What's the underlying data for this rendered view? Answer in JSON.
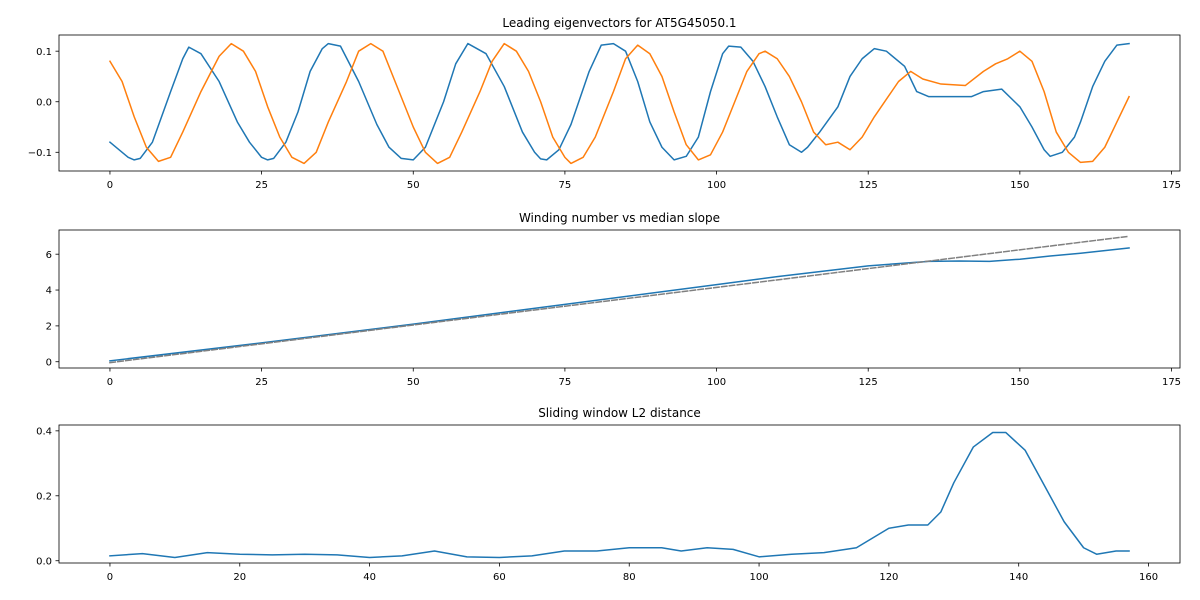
{
  "chart_data": [
    {
      "type": "line",
      "title": "Leading eigenvectors for AT5G45050.1",
      "xlim": [
        -8.4,
        176.4
      ],
      "ylim": [
        -0.137,
        0.132
      ],
      "xticks": [
        0,
        25,
        50,
        75,
        100,
        125,
        150,
        175
      ],
      "yticks": [
        -0.1,
        0.0,
        0.1
      ],
      "ytick_labels": [
        "−0.1",
        "0.0",
        "0.1"
      ],
      "grid": false,
      "series": [
        {
          "color": "#1f77b4",
          "style": "solid",
          "points": [
            [
              0,
              -0.08
            ],
            [
              3,
              -0.11
            ],
            [
              4,
              -0.115
            ],
            [
              5,
              -0.112
            ],
            [
              7,
              -0.08
            ],
            [
              10,
              0.02
            ],
            [
              12,
              0.085
            ],
            [
              13,
              0.108
            ],
            [
              15,
              0.095
            ],
            [
              18,
              0.04
            ],
            [
              21,
              -0.04
            ],
            [
              23,
              -0.08
            ],
            [
              25,
              -0.11
            ],
            [
              26,
              -0.115
            ],
            [
              27,
              -0.112
            ],
            [
              29,
              -0.08
            ],
            [
              31,
              -0.02
            ],
            [
              33,
              0.06
            ],
            [
              35,
              0.105
            ],
            [
              36,
              0.115
            ],
            [
              38,
              0.11
            ],
            [
              41,
              0.04
            ],
            [
              44,
              -0.045
            ],
            [
              46,
              -0.09
            ],
            [
              48,
              -0.112
            ],
            [
              50,
              -0.115
            ],
            [
              52,
              -0.09
            ],
            [
              55,
              0.0
            ],
            [
              57,
              0.075
            ],
            [
              59,
              0.115
            ],
            [
              62,
              0.095
            ],
            [
              65,
              0.03
            ],
            [
              68,
              -0.06
            ],
            [
              70,
              -0.1
            ],
            [
              71,
              -0.113
            ],
            [
              72,
              -0.115
            ],
            [
              74,
              -0.095
            ],
            [
              76,
              -0.045
            ],
            [
              79,
              0.06
            ],
            [
              81,
              0.112
            ],
            [
              83,
              0.115
            ],
            [
              85,
              0.1
            ],
            [
              87,
              0.04
            ],
            [
              89,
              -0.04
            ],
            [
              91,
              -0.09
            ],
            [
              93,
              -0.115
            ],
            [
              95,
              -0.108
            ],
            [
              97,
              -0.07
            ],
            [
              99,
              0.02
            ],
            [
              101,
              0.095
            ],
            [
              102,
              0.11
            ],
            [
              104,
              0.108
            ],
            [
              106,
              0.08
            ],
            [
              108,
              0.03
            ],
            [
              110,
              -0.03
            ],
            [
              112,
              -0.085
            ],
            [
              114,
              -0.1
            ],
            [
              115,
              -0.09
            ],
            [
              117,
              -0.06
            ],
            [
              120,
              -0.01
            ],
            [
              122,
              0.05
            ],
            [
              124,
              0.085
            ],
            [
              126,
              0.105
            ],
            [
              128,
              0.1
            ],
            [
              131,
              0.07
            ],
            [
              133,
              0.02
            ],
            [
              135,
              0.01
            ],
            [
              138,
              0.01
            ],
            [
              142,
              0.01
            ],
            [
              144,
              0.02
            ],
            [
              147,
              0.025
            ],
            [
              150,
              -0.01
            ],
            [
              152,
              -0.05
            ],
            [
              154,
              -0.095
            ],
            [
              155,
              -0.108
            ],
            [
              157,
              -0.1
            ],
            [
              159,
              -0.07
            ],
            [
              160,
              -0.04
            ],
            [
              162,
              0.03
            ],
            [
              164,
              0.08
            ],
            [
              166,
              0.112
            ],
            [
              168,
              0.115
            ]
          ]
        },
        {
          "color": "#ff7f0e",
          "style": "solid",
          "points": [
            [
              0,
              0.08
            ],
            [
              2,
              0.04
            ],
            [
              4,
              -0.03
            ],
            [
              6,
              -0.09
            ],
            [
              8,
              -0.118
            ],
            [
              10,
              -0.11
            ],
            [
              12,
              -0.06
            ],
            [
              15,
              0.02
            ],
            [
              18,
              0.09
            ],
            [
              20,
              0.115
            ],
            [
              22,
              0.1
            ],
            [
              24,
              0.06
            ],
            [
              26,
              -0.01
            ],
            [
              28,
              -0.07
            ],
            [
              30,
              -0.11
            ],
            [
              32,
              -0.122
            ],
            [
              34,
              -0.1
            ],
            [
              36,
              -0.04
            ],
            [
              39,
              0.04
            ],
            [
              41,
              0.1
            ],
            [
              43,
              0.115
            ],
            [
              45,
              0.1
            ],
            [
              47,
              0.04
            ],
            [
              50,
              -0.05
            ],
            [
              52,
              -0.1
            ],
            [
              54,
              -0.122
            ],
            [
              56,
              -0.11
            ],
            [
              58,
              -0.06
            ],
            [
              61,
              0.02
            ],
            [
              63,
              0.08
            ],
            [
              65,
              0.115
            ],
            [
              67,
              0.1
            ],
            [
              69,
              0.06
            ],
            [
              71,
              0.0
            ],
            [
              73,
              -0.07
            ],
            [
              75,
              -0.11
            ],
            [
              76,
              -0.122
            ],
            [
              78,
              -0.11
            ],
            [
              80,
              -0.07
            ],
            [
              83,
              0.02
            ],
            [
              85,
              0.085
            ],
            [
              87,
              0.112
            ],
            [
              89,
              0.095
            ],
            [
              91,
              0.05
            ],
            [
              93,
              -0.02
            ],
            [
              95,
              -0.085
            ],
            [
              97,
              -0.115
            ],
            [
              99,
              -0.105
            ],
            [
              101,
              -0.06
            ],
            [
              103,
              0.0
            ],
            [
              105,
              0.06
            ],
            [
              107,
              0.095
            ],
            [
              108,
              0.1
            ],
            [
              110,
              0.085
            ],
            [
              112,
              0.05
            ],
            [
              114,
              0.0
            ],
            [
              116,
              -0.06
            ],
            [
              118,
              -0.085
            ],
            [
              120,
              -0.08
            ],
            [
              122,
              -0.095
            ],
            [
              124,
              -0.07
            ],
            [
              126,
              -0.03
            ],
            [
              128,
              0.005
            ],
            [
              130,
              0.04
            ],
            [
              132,
              0.06
            ],
            [
              134,
              0.045
            ],
            [
              137,
              0.035
            ],
            [
              141,
              0.032
            ],
            [
              144,
              0.06
            ],
            [
              146,
              0.075
            ],
            [
              148,
              0.085
            ],
            [
              150,
              0.1
            ],
            [
              152,
              0.08
            ],
            [
              154,
              0.02
            ],
            [
              156,
              -0.06
            ],
            [
              158,
              -0.1
            ],
            [
              160,
              -0.12
            ],
            [
              162,
              -0.118
            ],
            [
              164,
              -0.09
            ],
            [
              166,
              -0.04
            ],
            [
              168,
              0.01
            ]
          ]
        }
      ]
    },
    {
      "type": "line",
      "title": "Winding number vs median slope",
      "xlim": [
        -8.4,
        176.4
      ],
      "ylim": [
        -0.35,
        7.35
      ],
      "xticks": [
        0,
        25,
        50,
        75,
        100,
        125,
        150,
        175
      ],
      "yticks": [
        0,
        2,
        4,
        6
      ],
      "ytick_labels": [
        "0",
        "2",
        "4",
        "6"
      ],
      "grid": false,
      "series": [
        {
          "color": "#1f77b4",
          "style": "solid",
          "points": [
            [
              0,
              0.05
            ],
            [
              25,
              1.05
            ],
            [
              50,
              2.1
            ],
            [
              75,
              3.2
            ],
            [
              100,
              4.3
            ],
            [
              110,
              4.75
            ],
            [
              125,
              5.35
            ],
            [
              135,
              5.6
            ],
            [
              140,
              5.62
            ],
            [
              145,
              5.6
            ],
            [
              150,
              5.72
            ],
            [
              155,
              5.9
            ],
            [
              160,
              6.05
            ],
            [
              168,
              6.35
            ]
          ]
        },
        {
          "color": "#808080",
          "style": "dashed",
          "points": [
            [
              0,
              -0.05
            ],
            [
              168,
              7.0
            ]
          ]
        }
      ]
    },
    {
      "type": "line",
      "title": "Sliding window L2 distance",
      "xlim": [
        -7.85,
        164.85
      ],
      "ylim": [
        -0.007,
        0.418
      ],
      "xticks": [
        0,
        20,
        40,
        60,
        80,
        100,
        120,
        140,
        160
      ],
      "yticks": [
        0.0,
        0.2,
        0.4
      ],
      "ytick_labels": [
        "0.0",
        "0.2",
        "0.4"
      ],
      "grid": false,
      "series": [
        {
          "color": "#1f77b4",
          "style": "solid",
          "points": [
            [
              0,
              0.015
            ],
            [
              5,
              0.022
            ],
            [
              10,
              0.01
            ],
            [
              15,
              0.025
            ],
            [
              20,
              0.02
            ],
            [
              25,
              0.018
            ],
            [
              30,
              0.02
            ],
            [
              35,
              0.018
            ],
            [
              40,
              0.01
            ],
            [
              45,
              0.015
            ],
            [
              50,
              0.03
            ],
            [
              55,
              0.012
            ],
            [
              60,
              0.01
            ],
            [
              65,
              0.015
            ],
            [
              70,
              0.03
            ],
            [
              75,
              0.03
            ],
            [
              80,
              0.04
            ],
            [
              85,
              0.04
            ],
            [
              88,
              0.03
            ],
            [
              92,
              0.04
            ],
            [
              96,
              0.035
            ],
            [
              100,
              0.012
            ],
            [
              105,
              0.02
            ],
            [
              110,
              0.025
            ],
            [
              115,
              0.04
            ],
            [
              120,
              0.1
            ],
            [
              123,
              0.11
            ],
            [
              126,
              0.11
            ],
            [
              128,
              0.15
            ],
            [
              130,
              0.24
            ],
            [
              133,
              0.35
            ],
            [
              136,
              0.395
            ],
            [
              138,
              0.395
            ],
            [
              141,
              0.34
            ],
            [
              144,
              0.23
            ],
            [
              147,
              0.12
            ],
            [
              150,
              0.04
            ],
            [
              152,
              0.02
            ],
            [
              155,
              0.03
            ],
            [
              157,
              0.03
            ]
          ]
        }
      ]
    }
  ]
}
